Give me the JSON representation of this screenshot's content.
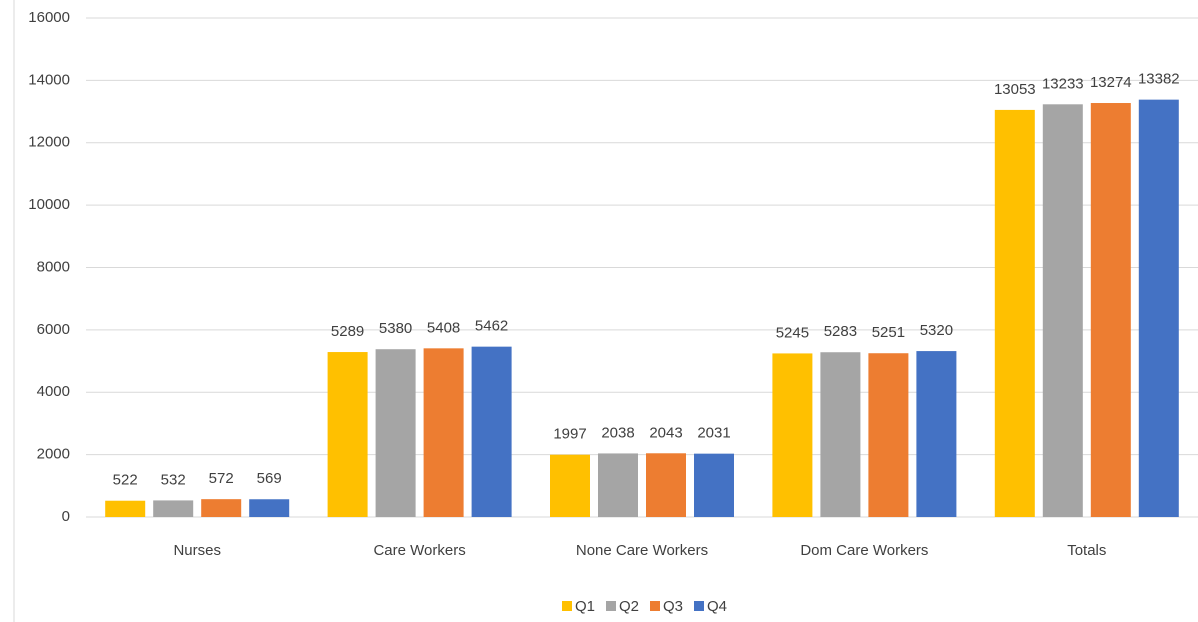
{
  "chart_data": {
    "type": "bar",
    "categories": [
      "Nurses",
      "Care Workers",
      "None Care Workers",
      "Dom Care Workers",
      "Totals"
    ],
    "series": [
      {
        "name": "Q1",
        "color": "#ffc000",
        "values": [
          522,
          5289,
          1997,
          5245,
          13053
        ]
      },
      {
        "name": "Q2",
        "color": "#a5a5a5",
        "values": [
          532,
          5380,
          2038,
          5283,
          13233
        ]
      },
      {
        "name": "Q3",
        "color": "#ed7d31",
        "values": [
          572,
          5408,
          2043,
          5251,
          13274
        ]
      },
      {
        "name": "Q4",
        "color": "#4472c4",
        "values": [
          569,
          5462,
          2031,
          5320,
          13382
        ]
      }
    ],
    "ylim": [
      0,
      16000
    ],
    "yticks": [
      0,
      2000,
      4000,
      6000,
      8000,
      10000,
      12000,
      14000,
      16000
    ],
    "grid": true,
    "legend": "bottom"
  }
}
